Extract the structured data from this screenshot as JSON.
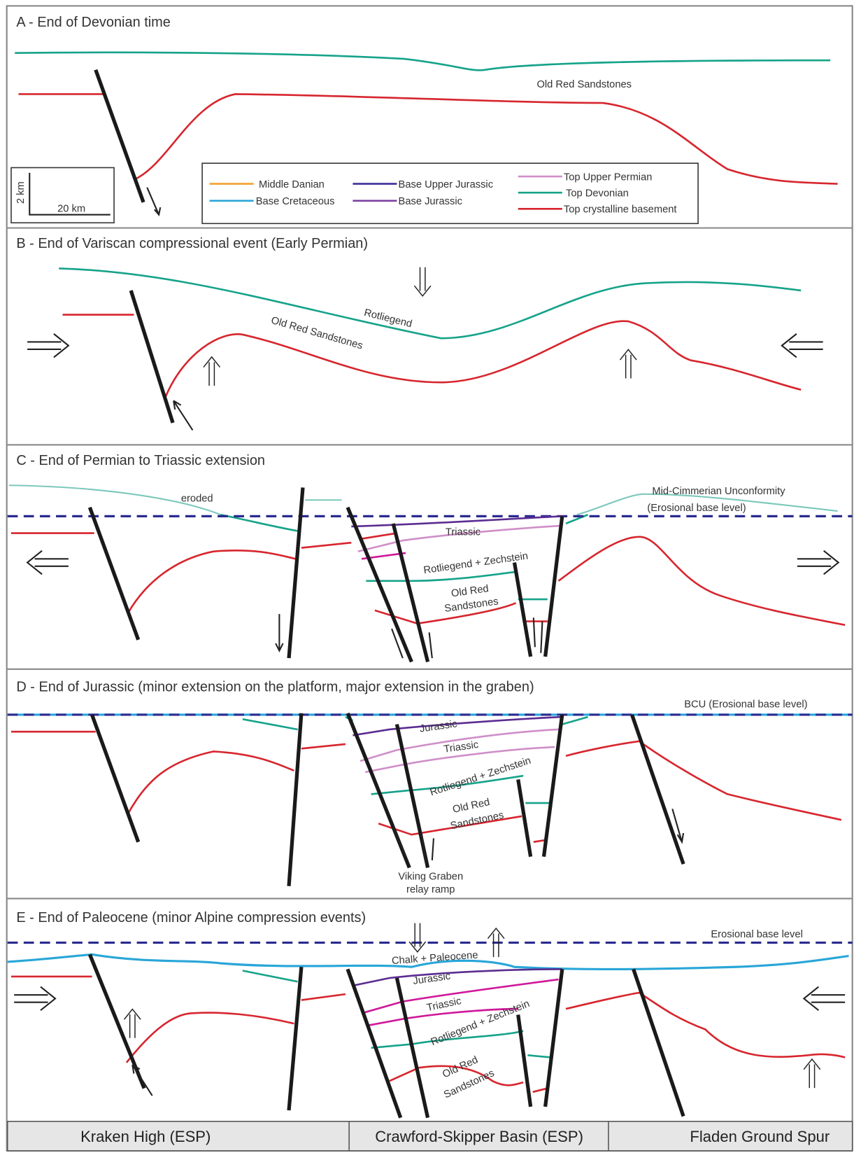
{
  "panels": [
    {
      "title": "A - End of Devonian time",
      "labels": [
        "Old Red Sandstones"
      ]
    },
    {
      "title": "B - End of Variscan compressional event (Early Permian)",
      "labels": [
        "Rotliegend",
        "Old Red Sandstones"
      ]
    },
    {
      "title": "C - End of Permian to Triassic extension",
      "labels": [
        "eroded",
        "Mid-Cimmerian Unconformity",
        "(Erosional base level)",
        "Triassic",
        "Rotliegend + Zechstein",
        "Old Red",
        "Sandstones"
      ]
    },
    {
      "title": "D - End of Jurassic (minor extension on the platform, major extension in the graben)",
      "labels": [
        "BCU (Erosional base level)",
        "Jurassic",
        "Triassic",
        "Rotliegend + Zechstein",
        "Old Red",
        "Sandstones",
        "Viking Graben",
        "relay ramp"
      ]
    },
    {
      "title": "E - End of Paleocene (minor Alpine compression events)",
      "labels": [
        "Erosional base level",
        "Chalk + Paleocene",
        "Jurassic",
        "Triassic",
        "Rotliegend + Zechstein",
        "Old Red",
        "Sandstones"
      ]
    }
  ],
  "legend": [
    "Middle Danian",
    "Base Cretaceous",
    "Base Upper Jurassic",
    "Base Jurassic",
    "Top Upper Permian",
    "Top Devonian",
    "Top crystalline basement"
  ],
  "scale": [
    "2 km",
    "20 km"
  ],
  "regions": [
    "Kraken High (ESP)",
    "Crawford-Skipper Basin (ESP)",
    "Fladen Ground Spur"
  ]
}
